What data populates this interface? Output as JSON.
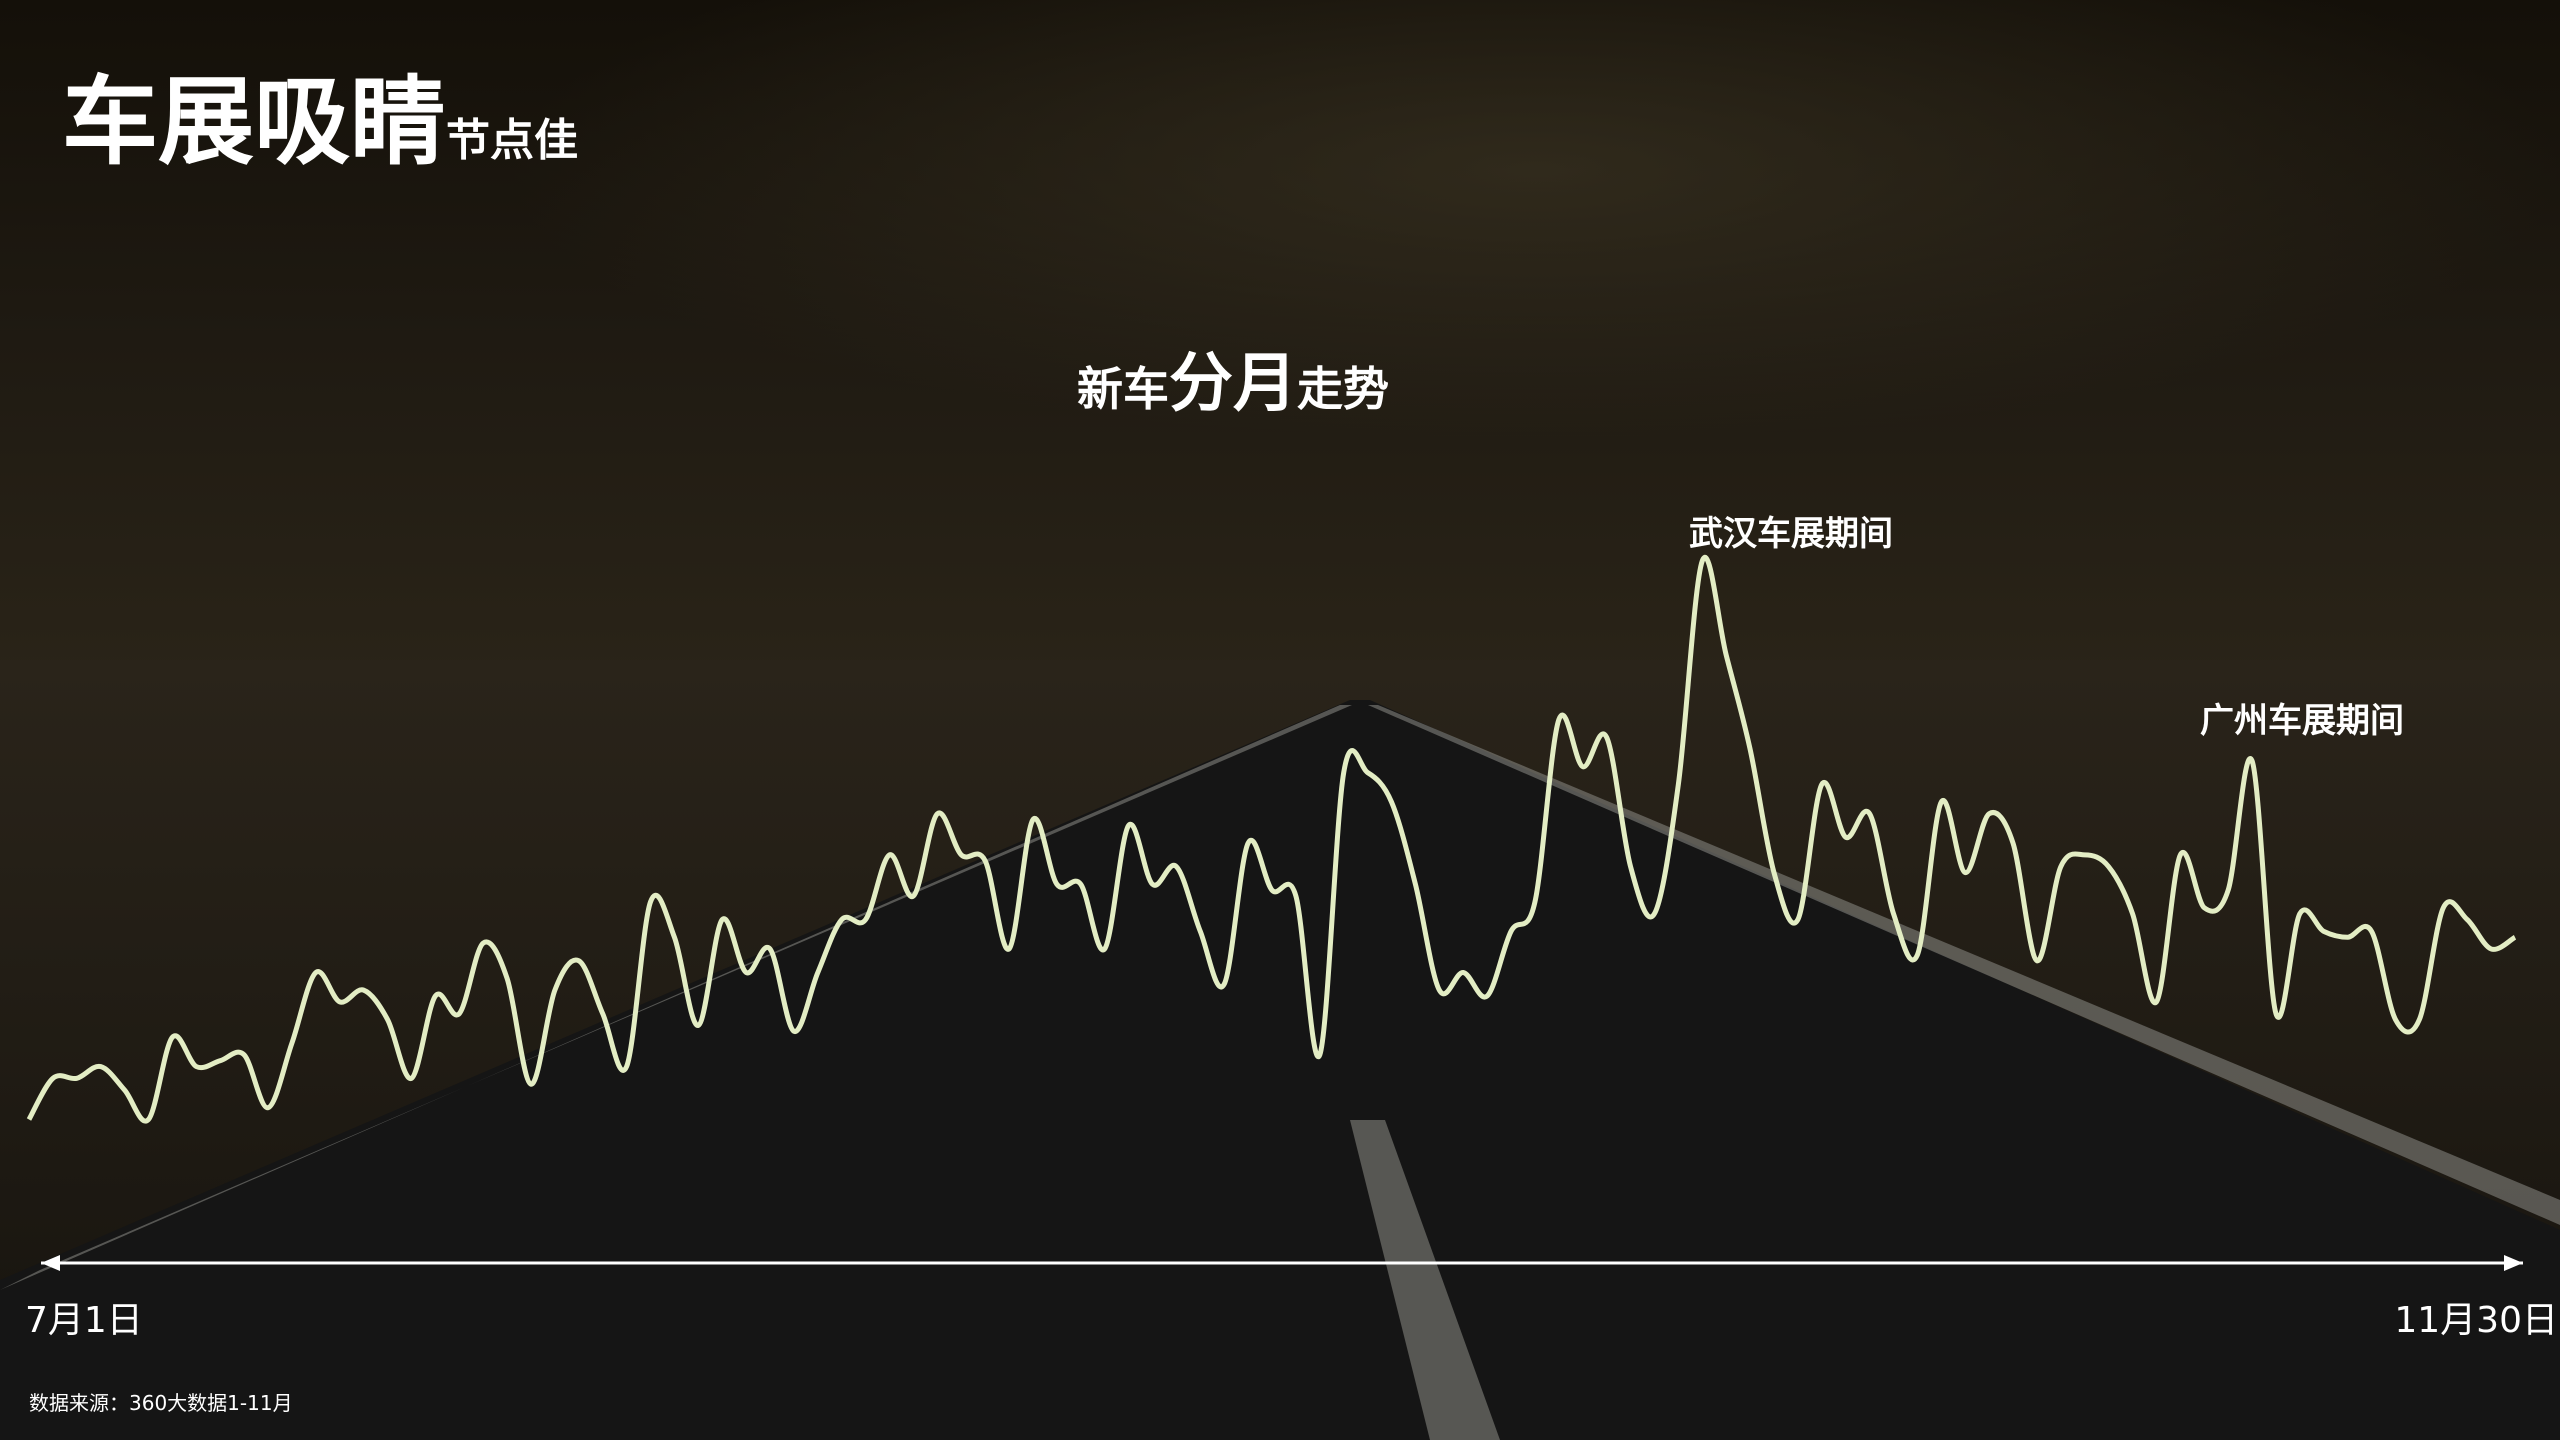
{
  "title": "车展吸睛",
  "title_suffix": "节点佳",
  "source": "数据来源：360大数据1-11月",
  "chart_data": {
    "type": "line",
    "subtitle_parts": [
      "新车",
      "分月",
      "走势"
    ],
    "start_label": "7月1日",
    "end_label": "11月30日",
    "annotations": [
      {
        "text": "武汉车展期间"
      },
      {
        "text": "广州车展期间"
      }
    ],
    "color": "#e3edc4",
    "ylim": [
      0,
      100
    ],
    "values": [
      4,
      11,
      11,
      13,
      9,
      4,
      18,
      13,
      14,
      15,
      6,
      17,
      29,
      24,
      26,
      21,
      11,
      25,
      22,
      34,
      28,
      10,
      26,
      31,
      22,
      13,
      41,
      35,
      20,
      38,
      29,
      33,
      19,
      29,
      38,
      38,
      49,
      42,
      56,
      49,
      48,
      33,
      55,
      44,
      44,
      33,
      54,
      44,
      47,
      36,
      27,
      51,
      43,
      42,
      15,
      63,
      63,
      58,
      44,
      26,
      29,
      25,
      36,
      41,
      72,
      64,
      69,
      47,
      39,
      61,
      99,
      83,
      67,
      46,
      38,
      61,
      52,
      56,
      39,
      32,
      58,
      46,
      56,
      51,
      31,
      47,
      49,
      47,
      39,
      24,
      49,
      40,
      43,
      65,
      22,
      39,
      36,
      35,
      36,
      21,
      21,
      40,
      38,
      33,
      35
    ]
  }
}
